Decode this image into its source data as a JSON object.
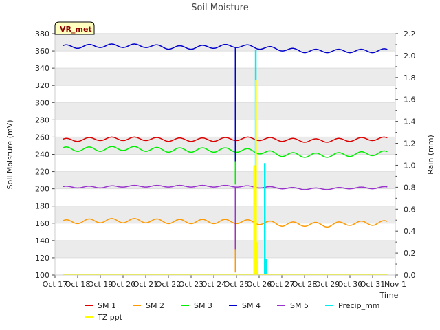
{
  "chart_data": {
    "type": "line",
    "title": "Soil Moisture",
    "station_badge": "VR_met",
    "xlabel": "Time",
    "ylabel_left": "Soil Moisture (mV)",
    "ylabel_right": "Rain (mm)",
    "x_tick_labels": [
      "Oct 17",
      "Oct 18",
      "Oct 19",
      "Oct 20",
      "Oct 21",
      "Oct 22",
      "Oct 23",
      "Oct 24",
      "Oct 25",
      "Oct 26",
      "Oct 27",
      "Oct 28",
      "Oct 29",
      "Oct 30",
      "Oct 31",
      "Nov 1"
    ],
    "x_range_days": [
      0,
      15
    ],
    "y_left_range": [
      100,
      380
    ],
    "y_left_ticks": [
      100,
      120,
      140,
      160,
      180,
      200,
      220,
      240,
      260,
      280,
      300,
      320,
      340,
      360,
      380
    ],
    "y_right_range": [
      0.0,
      2.2
    ],
    "y_right_ticks": [
      "0.0",
      "0.2",
      "0.4",
      "0.6",
      "0.8",
      "1.0",
      "1.2",
      "1.4",
      "1.6",
      "1.8",
      "2.0",
      "2.2"
    ],
    "grid": "horizontal bands",
    "legend_position": "bottom",
    "series": [
      {
        "name": "SM 1",
        "color": "#dd0000",
        "axis": "left",
        "base": [
          256,
          257,
          258,
          258,
          258,
          257,
          257,
          257,
          258,
          258,
          257,
          256,
          256,
          257,
          258,
          258
        ],
        "amplitude": 2
      },
      {
        "name": "SM 2",
        "color": "#ff9900",
        "axis": "left",
        "base": [
          161,
          162,
          163,
          163,
          163,
          162,
          162,
          162,
          162,
          161,
          159,
          159,
          158,
          160,
          160,
          161
        ],
        "amplitude": 2.5
      },
      {
        "name": "SM 3",
        "color": "#00ee00",
        "axis": "left",
        "base": [
          246,
          246,
          246,
          247,
          246,
          245,
          245,
          245,
          245,
          243,
          240,
          239,
          239,
          240,
          241,
          242
        ],
        "amplitude": 2.5
      },
      {
        "name": "SM 4",
        "color": "#0000cc",
        "axis": "left",
        "base": [
          365,
          365,
          366,
          366,
          366,
          364,
          364,
          365,
          366,
          364,
          362,
          360,
          360,
          360,
          360,
          361
        ],
        "amplitude": 2
      },
      {
        "name": "SM 5",
        "color": "#9933cc",
        "axis": "left",
        "base": [
          202,
          202,
          202,
          203,
          203,
          203,
          203,
          203,
          203,
          202,
          201,
          200,
          200,
          201,
          201,
          202
        ],
        "amplitude": 1
      },
      {
        "name": "Precip_mm",
        "color": "#00eeee",
        "axis": "right",
        "events": [
          {
            "day": 8.85,
            "value": 2.05
          },
          {
            "day": 9.25,
            "value": 1.02
          },
          {
            "day": 9.3,
            "value": 0.15
          }
        ]
      },
      {
        "name": "TZ ppt",
        "color": "#ffff00",
        "axis": "right",
        "events": [
          {
            "day": 8.78,
            "value": 1.0
          },
          {
            "day": 8.82,
            "value": 0.8
          },
          {
            "day": 8.86,
            "value": 1.78
          },
          {
            "day": 8.92,
            "value": 0.3
          }
        ]
      }
    ],
    "dip_event": {
      "day": 7.95,
      "values": {
        "SM 1": 255,
        "SM 2": 103,
        "SM 3": 205,
        "SM 4": 232,
        "SM 5": 130
      }
    }
  }
}
